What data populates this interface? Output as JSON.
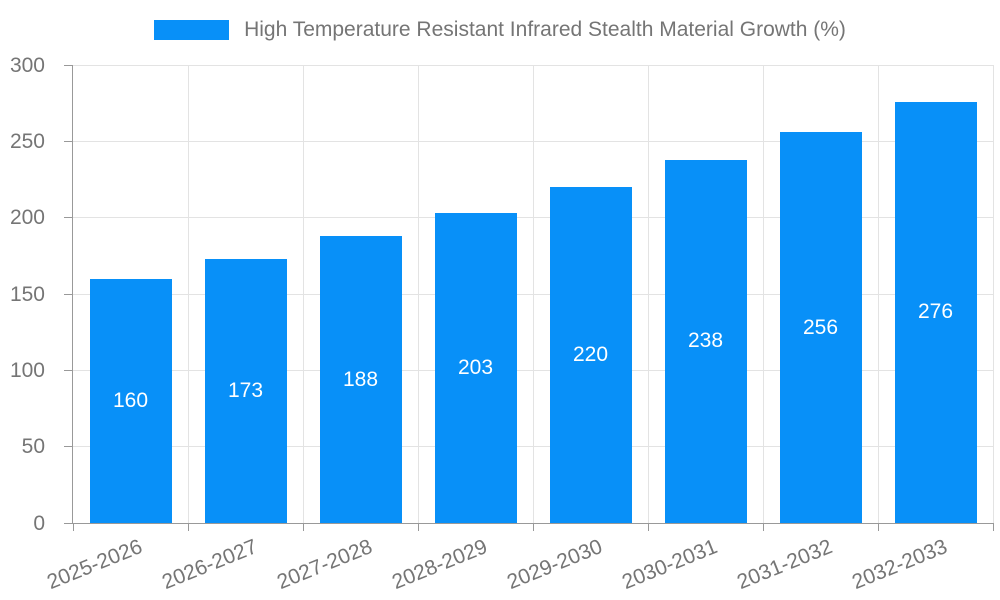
{
  "legend": {
    "label": "High Temperature Resistant Infrared Stealth Material Growth (%)"
  },
  "chart_data": {
    "type": "bar",
    "title": "High Temperature Resistant Infrared Stealth Material Growth (%)",
    "categories": [
      "2025-2026",
      "2026-2027",
      "2027-2028",
      "2028-2029",
      "2029-2030",
      "2030-2031",
      "2031-2032",
      "2032-2033"
    ],
    "values": [
      160,
      173,
      188,
      203,
      220,
      238,
      256,
      276
    ],
    "xlabel": "",
    "ylabel": "",
    "ylim": [
      0,
      300
    ],
    "yticks": [
      0,
      50,
      100,
      150,
      200,
      250,
      300
    ],
    "grid": true,
    "legend_position": "top",
    "bar_color": "#0890F8",
    "bar_label_color": "#ffffff",
    "axis_text_color": "#757575",
    "axis_line_color": "#999999",
    "grid_color": "#e3e3e3",
    "x_label_rotation_deg": -22
  }
}
